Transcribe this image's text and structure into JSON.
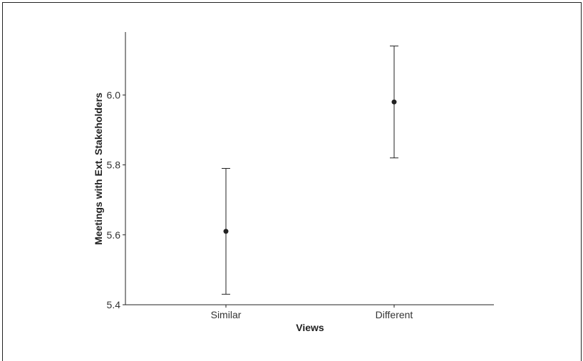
{
  "chart_data": {
    "type": "scatter",
    "title": "",
    "xlabel": "Views",
    "ylabel": "Meetings with Ext. Stakeholders",
    "categories": [
      "Similar",
      "Different"
    ],
    "series": [
      {
        "points": [
          {
            "x": "Similar",
            "y": 5.61,
            "lower": 5.43,
            "upper": 5.79
          },
          {
            "x": "Different",
            "y": 5.98,
            "lower": 5.82,
            "upper": 6.14
          }
        ]
      }
    ],
    "ylim": [
      5.4,
      6.18
    ],
    "yticks": [
      "5.4",
      "5.6",
      "5.8",
      "6.0"
    ],
    "grid": false,
    "error_bars": true
  },
  "colors": {
    "point": "#222222",
    "axis": "#222222"
  }
}
